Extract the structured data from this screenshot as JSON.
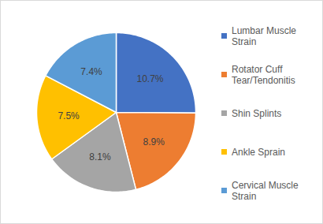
{
  "chart_data": {
    "type": "pie",
    "categories": [
      "Lumbar Muscle Strain",
      "Rotator Cuff Tear/Tendonitis",
      "Shin Splints",
      "Ankle Sprain",
      "Cervical Muscle Strain"
    ],
    "values": [
      10.7,
      8.9,
      8.1,
      7.5,
      7.4
    ],
    "value_labels": [
      "10.7%",
      "8.9%",
      "8.1%",
      "7.5%",
      "7.4%"
    ],
    "colors": [
      "#4472c4",
      "#ed7d31",
      "#a5a5a5",
      "#ffc000",
      "#5b9bd5"
    ],
    "data_labels": true,
    "legend": "right"
  }
}
